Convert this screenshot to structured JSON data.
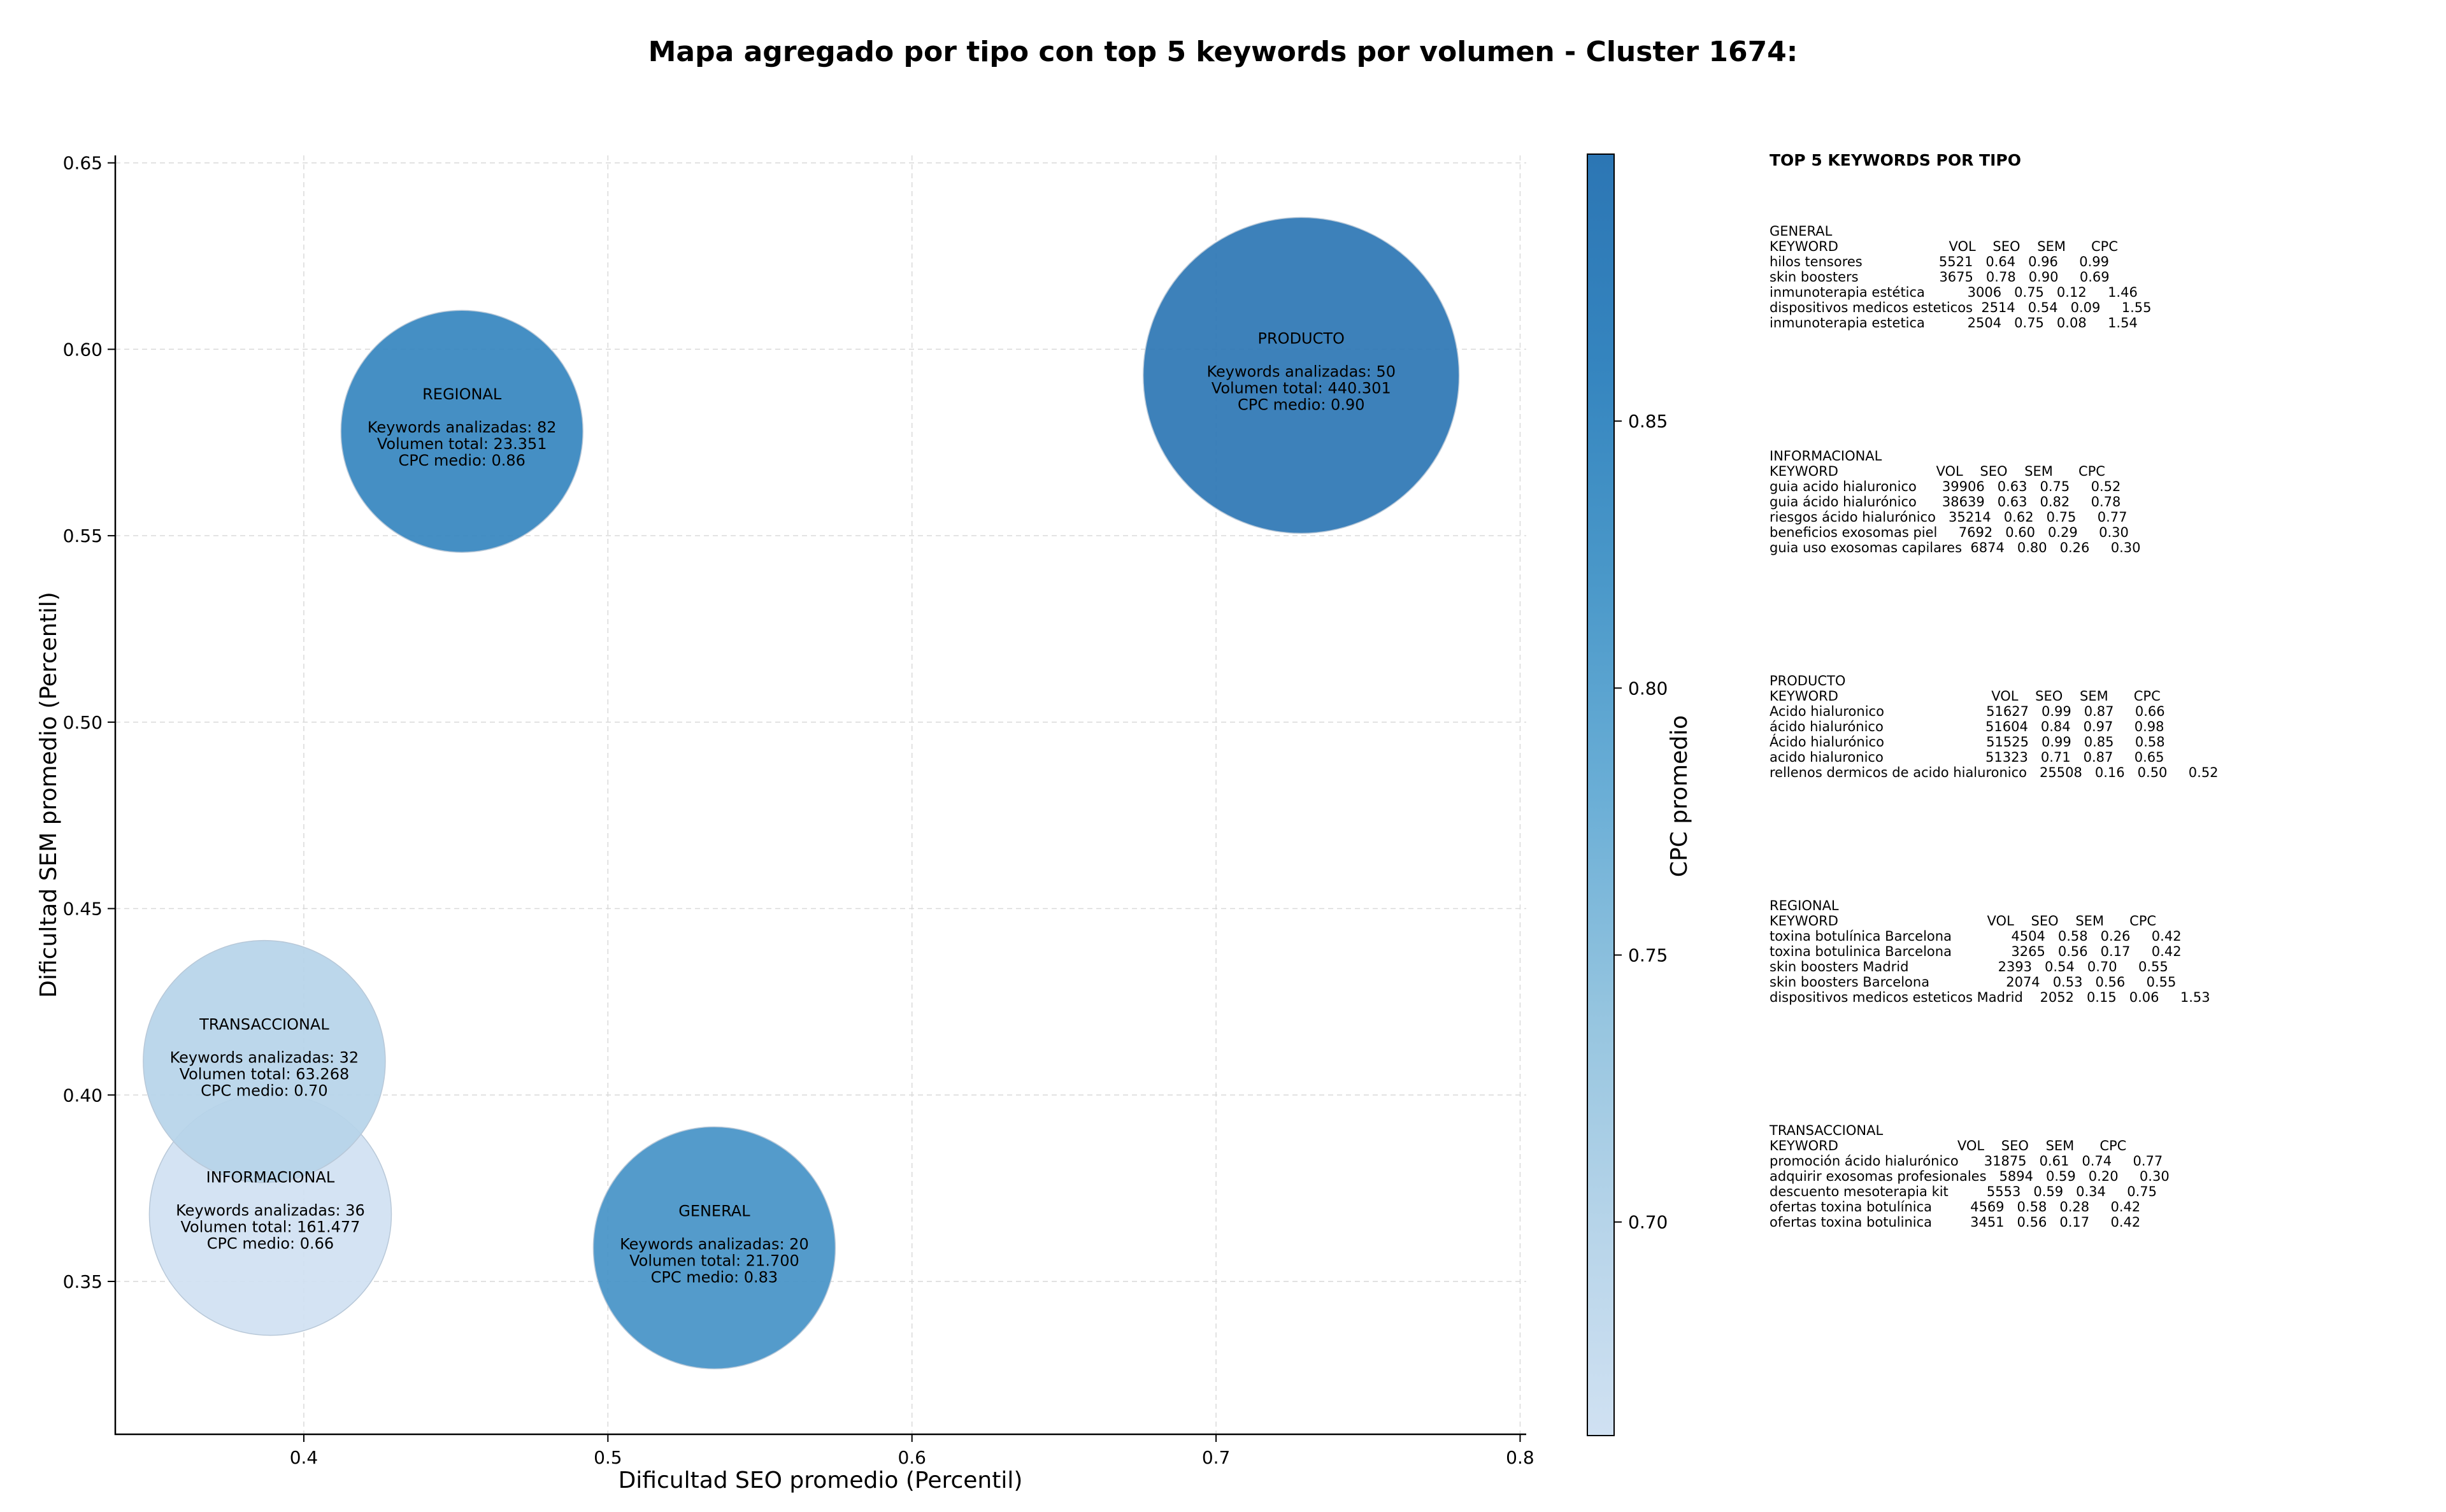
{
  "chart_data": {
    "type": "bubble",
    "title": "Mapa agregado por tipo con top 5 keywords por volumen - Cluster 1674:",
    "xlabel": "Dificultad SEO promedio (Percentil)",
    "ylabel": "Dificultad SEM promedio (Percentil)",
    "colorbar_label": "CPC promedio",
    "xlim": [
      0.338,
      0.802
    ],
    "ylim": [
      0.309,
      0.652
    ],
    "x_ticks": [
      0.4,
      0.5,
      0.6,
      0.7,
      0.8
    ],
    "y_ticks": [
      0.35,
      0.4,
      0.45,
      0.5,
      0.55,
      0.6,
      0.65
    ],
    "x_tick_labels": [
      "0.4",
      "0.5",
      "0.6",
      "0.7",
      "0.8"
    ],
    "y_tick_labels": [
      "0.35",
      "0.40",
      "0.45",
      "0.50",
      "0.55",
      "0.60",
      "0.65"
    ],
    "colorbar_range": [
      0.66,
      0.9
    ],
    "colorbar_ticks": [
      0.7,
      0.75,
      0.8,
      0.85
    ],
    "colorbar_tick_labels": [
      "0.70",
      "0.75",
      "0.80",
      "0.85"
    ],
    "colormap": [
      "#d0e1f2",
      "#b6d4e9",
      "#94c4df",
      "#6aaed6",
      "#4a98c9",
      "#3585bf",
      "#2c76b4"
    ],
    "grid": true,
    "points": [
      {
        "name": "GENERAL",
        "x": 0.535,
        "y": 0.359,
        "volume": 21700,
        "cpc": 0.83,
        "keywords_label": "Keywords analizadas: 20",
        "volume_label": "Volumen total: 21.700",
        "cpc_label": "CPC medio: 0.83"
      },
      {
        "name": "INFORMACIONAL",
        "x": 0.389,
        "y": 0.368,
        "volume": 161477,
        "cpc": 0.66,
        "keywords_label": "Keywords analizadas: 36",
        "volume_label": "Volumen total: 161.477",
        "cpc_label": "CPC medio: 0.66"
      },
      {
        "name": "PRODUCTO",
        "x": 0.728,
        "y": 0.593,
        "volume": 440301,
        "cpc": 0.9,
        "keywords_label": "Keywords analizadas: 50",
        "volume_label": "Volumen total: 440.301",
        "cpc_label": "CPC medio: 0.90"
      },
      {
        "name": "REGIONAL",
        "x": 0.452,
        "y": 0.578,
        "volume": 23351,
        "cpc": 0.86,
        "keywords_label": "Keywords analizadas: 82",
        "volume_label": "Volumen total: 23.351",
        "cpc_label": "CPC medio: 0.86"
      },
      {
        "name": "TRANSACCIONAL",
        "x": 0.387,
        "y": 0.409,
        "volume": 63268,
        "cpc": 0.7,
        "keywords_label": "Keywords analizadas: 32",
        "volume_label": "Volumen total: 63.268",
        "cpc_label": "CPC medio: 0.70"
      }
    ]
  },
  "side_panel": {
    "title": "TOP 5 KEYWORDS POR TIPO",
    "sections": [
      {
        "type": "GENERAL",
        "lines": [
          "KEYWORD                          VOL    SEO    SEM      CPC",
          "hilos tensores                  5521   0.64   0.96     0.99",
          "skin boosters                   3675   0.78   0.90     0.69",
          "inmunoterapia estética          3006   0.75   0.12     1.46",
          "dispositivos medicos esteticos  2514   0.54   0.09     1.55",
          "inmunoterapia estetica          2504   0.75   0.08     1.54"
        ]
      },
      {
        "type": "INFORMACIONAL",
        "lines": [
          "KEYWORD                       VOL    SEO    SEM      CPC",
          "guia acido hialuronico      39906   0.63   0.75     0.52",
          "guia ácido hialurónico      38639   0.63   0.82     0.78",
          "riesgos ácido hialurónico   35214   0.62   0.75     0.77",
          "beneficios exosomas piel     7692   0.60   0.29     0.30",
          "guia uso exosomas capilares  6874   0.80   0.26     0.30"
        ]
      },
      {
        "type": "PRODUCTO",
        "lines": [
          "KEYWORD                                    VOL    SEO    SEM      CPC",
          "Acido hialuronico                        51627   0.99   0.87     0.66",
          "ácido hialurónico                        51604   0.84   0.97     0.98",
          "Ácido hialurónico                        51525   0.99   0.85     0.58",
          "acido hialuronico                        51323   0.71   0.87     0.65",
          "rellenos dermicos de acido hialuronico   25508   0.16   0.50     0.52"
        ]
      },
      {
        "type": "REGIONAL",
        "lines": [
          "KEYWORD                                   VOL    SEO    SEM      CPC",
          "toxina botulínica Barcelona              4504   0.58   0.26     0.42",
          "toxina botulinica Barcelona              3265   0.56   0.17     0.42",
          "skin boosters Madrid                     2393   0.54   0.70     0.55",
          "skin boosters Barcelona                  2074   0.53   0.56     0.55",
          "dispositivos medicos esteticos Madrid    2052   0.15   0.06     1.53"
        ]
      },
      {
        "type": "TRANSACCIONAL",
        "lines": [
          "KEYWORD                            VOL    SEO    SEM      CPC",
          "promoción ácido hialurónico      31875   0.61   0.74     0.77",
          "adquirir exosomas profesionales   5894   0.59   0.20     0.30",
          "descuento mesoterapia kit         5553   0.59   0.34     0.75",
          "ofertas toxina botulínica         4569   0.58   0.28     0.42",
          "ofertas toxina botulinica         3451   0.56   0.17     0.42"
        ]
      }
    ]
  }
}
